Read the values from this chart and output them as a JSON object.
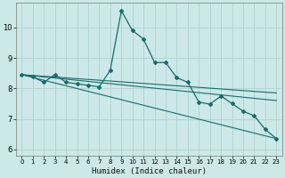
{
  "xlabel": "Humidex (Indice chaleur)",
  "xlim": [
    -0.5,
    23.5
  ],
  "ylim": [
    5.8,
    10.8
  ],
  "yticks": [
    6,
    7,
    8,
    9,
    10
  ],
  "xticks": [
    0,
    1,
    2,
    3,
    4,
    5,
    6,
    7,
    8,
    9,
    10,
    11,
    12,
    13,
    14,
    15,
    16,
    17,
    18,
    19,
    20,
    21,
    22,
    23
  ],
  "bg_color": "#cce8e8",
  "grid_color": "#aacece",
  "line_color": "#1a6b6b",
  "main_line": {
    "x": [
      0,
      1,
      2,
      3,
      4,
      5,
      6,
      7,
      8,
      9,
      10,
      11,
      12,
      13,
      14,
      15,
      16,
      17,
      18,
      19,
      20,
      21,
      22,
      23
    ],
    "y": [
      8.45,
      8.38,
      8.2,
      8.45,
      8.2,
      8.15,
      8.1,
      8.05,
      8.6,
      10.55,
      9.9,
      9.62,
      8.85,
      8.85,
      8.35,
      8.2,
      7.55,
      7.48,
      7.75,
      7.5,
      7.25,
      7.1,
      6.65,
      6.35
    ]
  },
  "straight_lines": [
    {
      "x": [
        0,
        23
      ],
      "y": [
        8.45,
        6.35
      ]
    },
    {
      "x": [
        0,
        23
      ],
      "y": [
        8.45,
        7.6
      ]
    },
    {
      "x": [
        0,
        23
      ],
      "y": [
        8.45,
        7.85
      ]
    }
  ]
}
